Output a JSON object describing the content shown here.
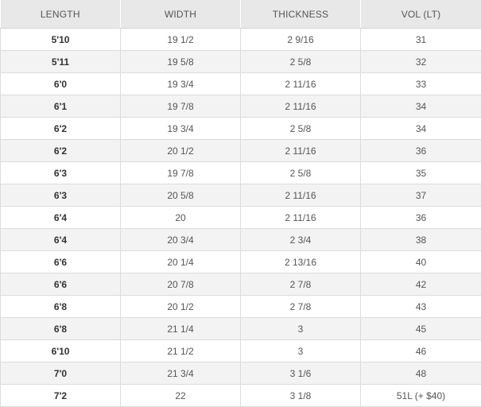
{
  "table": {
    "headers": [
      "LENGTH",
      "WIDTH",
      "THICKNESS",
      "VOL (LT)"
    ],
    "rows": [
      [
        "5'10",
        "19 1/2",
        "2  9/16",
        "31"
      ],
      [
        "5'11",
        "19 5/8",
        "2 5/8",
        "32"
      ],
      [
        "6'0",
        "19 3/4",
        "2 11/16",
        "33"
      ],
      [
        "6'1",
        "19 7/8",
        "2 11/16",
        "34"
      ],
      [
        "6'2",
        "19 3/4",
        "2 5/8",
        "34"
      ],
      [
        "6'2",
        "20 1/2",
        "2 11/16",
        "36"
      ],
      [
        "6'3",
        "19 7/8",
        "2 5/8",
        "35"
      ],
      [
        "6'3",
        "20 5/8",
        "2 11/16",
        "37"
      ],
      [
        "6'4",
        "20",
        "2 11/16",
        "36"
      ],
      [
        "6'4",
        "20 3/4",
        "2 3/4",
        "38"
      ],
      [
        "6'6",
        "20 1/4",
        "2 13/16",
        "40"
      ],
      [
        "6'6",
        "20 7/8",
        "2 7/8",
        "42"
      ],
      [
        "6'8",
        "20 1/2",
        "2 7/8",
        "43"
      ],
      [
        "6'8",
        "21 1/4",
        "3",
        "45"
      ],
      [
        "6'10",
        "21 1/2",
        "3",
        "46"
      ],
      [
        "7'0",
        "21 3/4",
        "3 1/6",
        "48"
      ],
      [
        "7'2",
        "22",
        "3 1/8",
        "51L (+ $40)"
      ]
    ]
  },
  "colors": {
    "header_bg": "#e8e8e8",
    "stripe_bg": "#f3f3f3",
    "border": "#dcdcdc",
    "text": "#555555"
  }
}
